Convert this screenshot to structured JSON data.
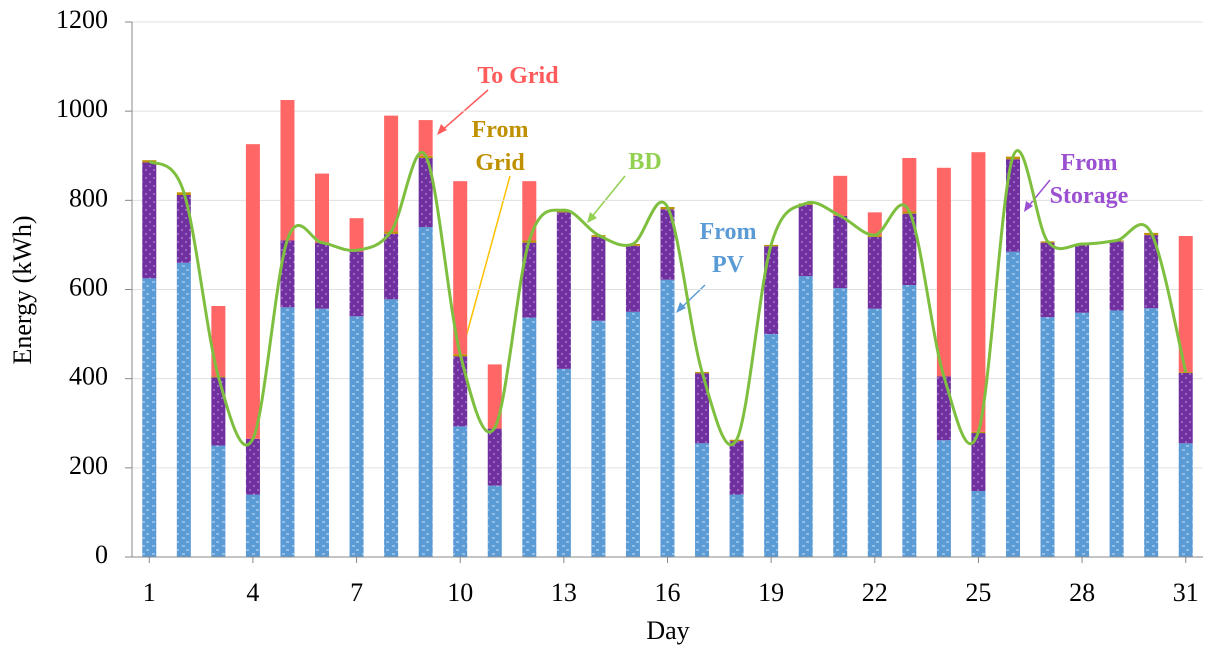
{
  "chart_data": {
    "type": "stacked-bar-line",
    "x_label": "Day",
    "y_label": "Energy (kWh)",
    "x": [
      1,
      2,
      3,
      4,
      5,
      6,
      7,
      8,
      9,
      10,
      11,
      12,
      13,
      14,
      15,
      16,
      17,
      18,
      19,
      20,
      21,
      22,
      23,
      24,
      25,
      26,
      27,
      28,
      29,
      30,
      31
    ],
    "xlim": [
      0.5,
      31.5
    ],
    "xticks": [
      1,
      4,
      7,
      10,
      13,
      16,
      19,
      22,
      25,
      28,
      31
    ],
    "ylim": [
      0,
      1200
    ],
    "yticks": [
      0,
      200,
      400,
      600,
      800,
      1000,
      1200
    ],
    "grid": true,
    "series": [
      {
        "name": "From PV",
        "color": "#5b9bd5",
        "label_color": "#5b9bd5",
        "values": [
          625,
          660,
          250,
          140,
          560,
          557,
          540,
          578,
          740,
          293,
          160,
          537,
          422,
          530,
          550,
          622,
          255,
          140,
          500,
          630,
          603,
          557,
          610,
          262,
          148,
          685,
          538,
          548,
          553,
          558,
          255
        ]
      },
      {
        "name": "From Storage",
        "color": "#7030a0",
        "label_color": "#9b4fd1",
        "values": [
          260,
          152,
          153,
          125,
          150,
          148,
          145,
          147,
          155,
          157,
          128,
          168,
          351,
          188,
          148,
          158,
          157,
          120,
          197,
          160,
          162,
          161,
          160,
          143,
          130,
          207,
          167,
          152,
          155,
          164,
          158
        ]
      },
      {
        "name": "From Grid",
        "color": "#bf9000",
        "label_color": "#bf9000",
        "values": [
          5,
          6,
          2,
          0,
          0,
          0,
          0,
          5,
          5,
          5,
          0,
          5,
          5,
          4,
          4,
          5,
          3,
          3,
          3,
          3,
          0,
          4,
          5,
          0,
          3,
          6,
          3,
          2,
          2,
          5,
          2
        ]
      },
      {
        "name": "To Grid",
        "color": "#ff6666",
        "label_color": "#ff5b5b",
        "values": [
          0,
          0,
          158,
          661,
          315,
          155,
          75,
          260,
          80,
          388,
          144,
          133,
          0,
          0,
          0,
          0,
          0,
          0,
          0,
          0,
          90,
          51,
          120,
          468,
          627,
          0,
          0,
          0,
          0,
          0,
          305
        ]
      },
      {
        "name": "BD",
        "type": "line",
        "color": "#7fbf3f",
        "label_color": "#92d050",
        "values": [
          888,
          818,
          405,
          265,
          712,
          705,
          688,
          730,
          900,
          455,
          290,
          710,
          778,
          722,
          702,
          785,
          415,
          263,
          700,
          793,
          765,
          722,
          775,
          405,
          281,
          898,
          708,
          702,
          710,
          727,
          415
        ]
      }
    ]
  }
}
